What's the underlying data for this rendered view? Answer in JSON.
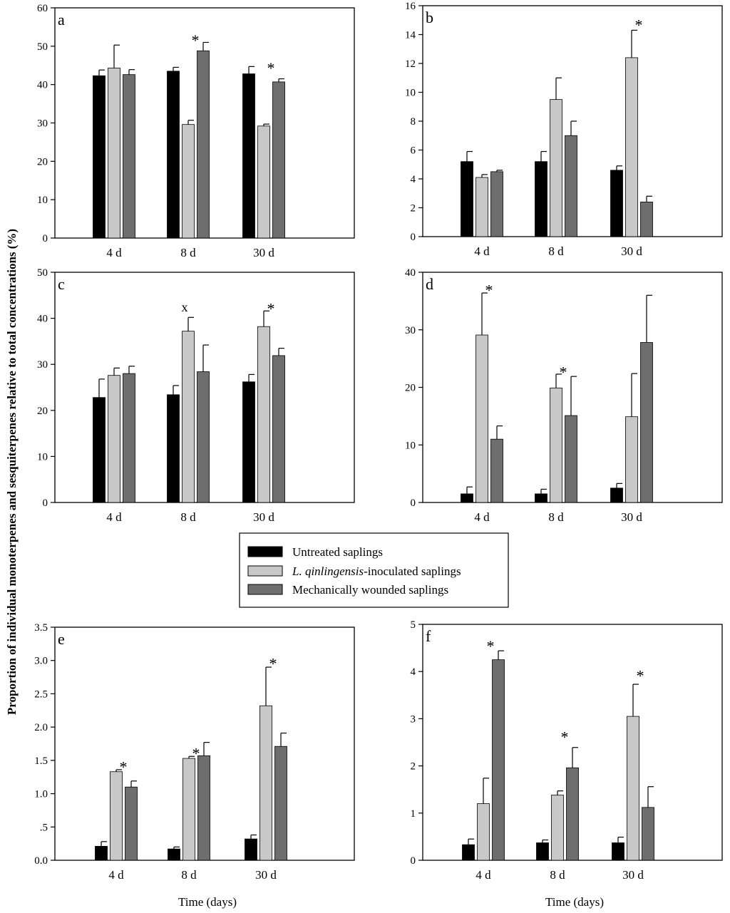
{
  "figure": {
    "y_axis_title": "Proportion of  individual monoterpenes and sesquiterpenes relative to total concentrations (%)",
    "legend": {
      "items": [
        {
          "key": "untreated",
          "text": "Untreated saplings",
          "italic_prefix": "",
          "color": "#000000"
        },
        {
          "key": "inoculated",
          "text": "-inoculated saplings",
          "italic_prefix": "L. qinlingensis",
          "color": "#c8c8c8"
        },
        {
          "key": "wounded",
          "text": "Mechanically wounded saplings",
          "italic_prefix": "",
          "color": "#6e6e6e"
        }
      ]
    },
    "series_colors": {
      "untreated": "#000000",
      "inoculated": "#c8c8c8",
      "wounded": "#6e6e6e"
    }
  },
  "chart_data": [
    {
      "panel": "a",
      "type": "bar",
      "categories": [
        "4 d",
        "8 d",
        "30 d"
      ],
      "ylim": [
        0,
        60
      ],
      "yticks": [
        0,
        10,
        20,
        30,
        40,
        50,
        60
      ],
      "ytick_labels": [
        "0",
        "10",
        "20",
        "30",
        "40",
        "50",
        "60"
      ],
      "xlabel": "",
      "series": [
        {
          "key": "untreated",
          "values": [
            42.3,
            43.5,
            42.8
          ],
          "errors": [
            1.5,
            1.0,
            1.9
          ]
        },
        {
          "key": "inoculated",
          "values": [
            44.3,
            29.6,
            29.2
          ],
          "errors": [
            6.0,
            1.1,
            0.5
          ]
        },
        {
          "key": "wounded",
          "values": [
            42.6,
            48.8,
            40.7
          ],
          "errors": [
            1.3,
            2.2,
            0.8
          ]
        }
      ],
      "annotations": [
        {
          "category": 1,
          "text": "*",
          "value": 52
        },
        {
          "category": 2,
          "text": "*",
          "value": 44.8
        }
      ]
    },
    {
      "panel": "b",
      "type": "bar",
      "categories": [
        "4 d",
        "8 d",
        "30 d"
      ],
      "ylim": [
        0,
        16
      ],
      "yticks": [
        0,
        2,
        4,
        6,
        8,
        10,
        12,
        14,
        16
      ],
      "ytick_labels": [
        "0",
        "2",
        "4",
        "6",
        "8",
        "10",
        "12",
        "14",
        "16"
      ],
      "xlabel": "",
      "series": [
        {
          "key": "untreated",
          "values": [
            5.2,
            5.2,
            4.6
          ],
          "errors": [
            0.7,
            0.7,
            0.3
          ]
        },
        {
          "key": "inoculated",
          "values": [
            4.1,
            9.5,
            12.4
          ],
          "errors": [
            0.2,
            1.5,
            1.9
          ]
        },
        {
          "key": "wounded",
          "values": [
            4.5,
            7.0,
            2.4
          ],
          "errors": [
            0.1,
            1.0,
            0.4
          ]
        }
      ],
      "annotations": [
        {
          "category": 2,
          "text": "*",
          "value": 14.8
        }
      ]
    },
    {
      "panel": "c",
      "type": "bar",
      "categories": [
        "4 d",
        "8 d",
        "30 d"
      ],
      "ylim": [
        0,
        50
      ],
      "yticks": [
        0,
        10,
        20,
        30,
        40,
        50
      ],
      "ytick_labels": [
        "0",
        "10",
        "20",
        "30",
        "40",
        "50"
      ],
      "xlabel": "",
      "series": [
        {
          "key": "untreated",
          "values": [
            22.8,
            23.4,
            26.2
          ],
          "errors": [
            4.0,
            2.0,
            1.6
          ]
        },
        {
          "key": "inoculated",
          "values": [
            27.6,
            37.2,
            38.2
          ],
          "errors": [
            1.6,
            3.0,
            3.4
          ]
        },
        {
          "key": "wounded",
          "values": [
            28.0,
            28.4,
            31.9
          ],
          "errors": [
            1.6,
            5.8,
            1.6
          ]
        }
      ],
      "annotations": [
        {
          "category": 1,
          "text": "x",
          "value": 41.5
        },
        {
          "category": 2,
          "text": "*",
          "value": 42.5
        }
      ]
    },
    {
      "panel": "d",
      "type": "bar",
      "categories": [
        "4 d",
        "8 d",
        "30 d"
      ],
      "ylim": [
        0,
        40
      ],
      "yticks": [
        0,
        10,
        20,
        30,
        40
      ],
      "ytick_labels": [
        "0",
        "10",
        "20",
        "30",
        "40"
      ],
      "xlabel": "",
      "series": [
        {
          "key": "untreated",
          "values": [
            1.5,
            1.5,
            2.5
          ],
          "errors": [
            1.2,
            0.8,
            0.8
          ]
        },
        {
          "key": "inoculated",
          "values": [
            29.1,
            19.9,
            14.9
          ],
          "errors": [
            7.3,
            2.4,
            7.5
          ]
        },
        {
          "key": "wounded",
          "values": [
            11.0,
            15.1,
            27.8
          ],
          "errors": [
            2.3,
            6.8,
            8.2
          ]
        }
      ],
      "annotations": [
        {
          "category": 0,
          "text": "*",
          "value": 37.2
        },
        {
          "category": 1,
          "text": "*",
          "value": 23.0
        }
      ]
    },
    {
      "panel": "e",
      "type": "bar",
      "categories": [
        "4 d",
        "8 d",
        "30 d"
      ],
      "ylim": [
        0,
        3.5
      ],
      "yticks": [
        0,
        0.5,
        1.0,
        1.5,
        2.0,
        2.5,
        3.0,
        3.5
      ],
      "ytick_labels": [
        "0.0",
        ".5",
        "1.0",
        "1.5",
        "2.0",
        "2.5",
        "3.0",
        "3.5"
      ],
      "xlabel": "Time (days)",
      "series": [
        {
          "key": "untreated",
          "values": [
            0.21,
            0.17,
            0.32
          ],
          "errors": [
            0.07,
            0.03,
            0.06
          ]
        },
        {
          "key": "inoculated",
          "values": [
            1.33,
            1.53,
            2.32
          ],
          "errors": [
            0.03,
            0.03,
            0.58
          ]
        },
        {
          "key": "wounded",
          "values": [
            1.1,
            1.57,
            1.71
          ],
          "errors": [
            0.09,
            0.2,
            0.2
          ]
        }
      ],
      "annotations": [
        {
          "category": 0,
          "text": "*",
          "value": 1.43
        },
        {
          "category": 1,
          "text": "*",
          "value": 1.63
        },
        {
          "category": 2,
          "text": "*",
          "value": 2.98
        }
      ]
    },
    {
      "panel": "f",
      "type": "bar",
      "categories": [
        "4 d",
        "8 d",
        "30 d"
      ],
      "ylim": [
        0,
        5
      ],
      "yticks": [
        0,
        1,
        2,
        3,
        4,
        5
      ],
      "ytick_labels": [
        "0",
        "1",
        "2",
        "3",
        "4",
        "5"
      ],
      "xlabel": "Time (days)",
      "series": [
        {
          "key": "untreated",
          "values": [
            0.33,
            0.37,
            0.37
          ],
          "errors": [
            0.12,
            0.06,
            0.12
          ]
        },
        {
          "key": "inoculated",
          "values": [
            1.2,
            1.38,
            3.05
          ],
          "errors": [
            0.54,
            0.09,
            0.68
          ]
        },
        {
          "key": "wounded",
          "values": [
            4.25,
            1.96,
            1.12
          ],
          "errors": [
            0.19,
            0.43,
            0.44
          ]
        }
      ],
      "annotations": [
        {
          "category": 0,
          "text": "*",
          "value": 4.58
        },
        {
          "category": 1,
          "text": "*",
          "value": 2.65
        },
        {
          "category": 2,
          "text": "*",
          "value": 3.95
        }
      ]
    }
  ]
}
